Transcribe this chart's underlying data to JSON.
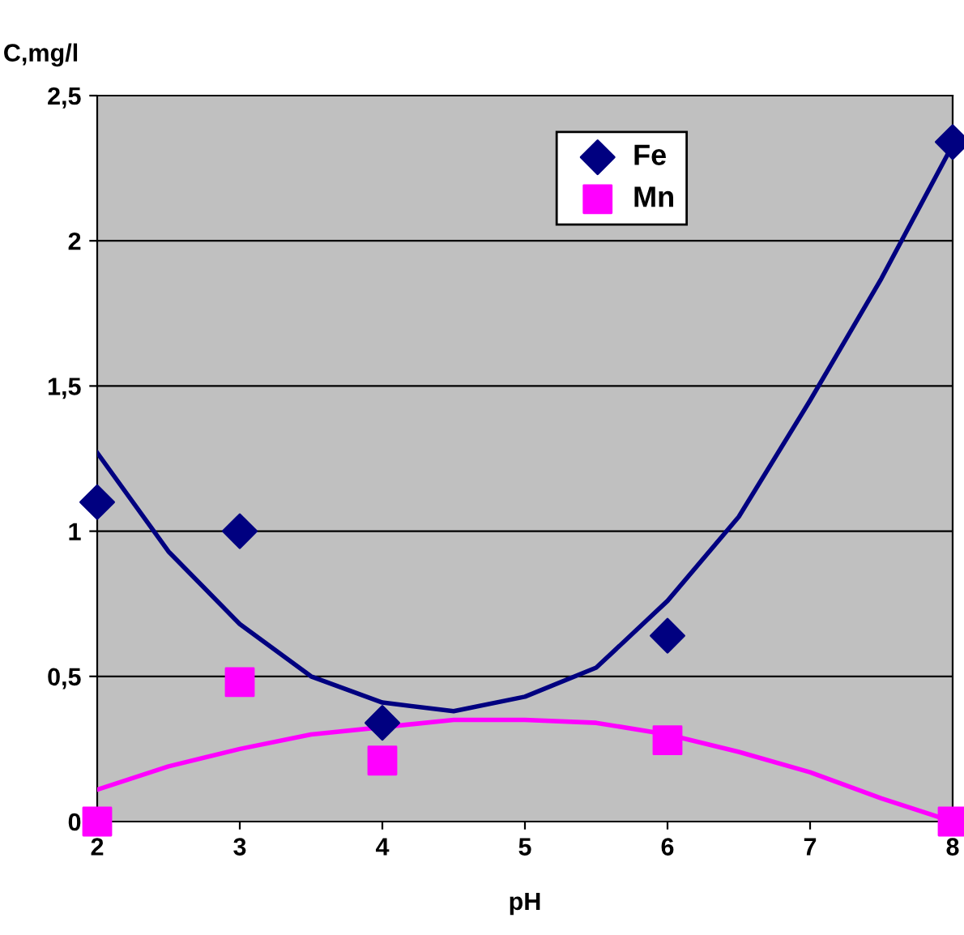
{
  "chart_data": {
    "type": "scatter",
    "xlabel": "pH",
    "ylabel": "C,mg/l",
    "xlim": [
      2,
      8
    ],
    "xticks": [
      2,
      3,
      4,
      5,
      6,
      7,
      8
    ],
    "ylim": [
      0,
      2.5
    ],
    "yticks": [
      0,
      {
        "value": 0.5,
        "label": "0,5"
      },
      1,
      {
        "value": 1.5,
        "label": "1,5"
      },
      2,
      {
        "value": 2.5,
        "label": "2,5"
      }
    ],
    "grid": "y",
    "legend": "top",
    "series": [
      {
        "name": "Fe",
        "marker": "diamond",
        "color": "#000080",
        "x": [
          2,
          3,
          4,
          6,
          8
        ],
        "values": [
          1.1,
          1.0,
          0.34,
          0.64,
          2.34
        ]
      },
      {
        "name": "Mn",
        "marker": "square",
        "color": "#ff00ff",
        "x": [
          2,
          3,
          4,
          6,
          8
        ],
        "values": [
          0.0,
          0.48,
          0.21,
          0.28,
          0.0
        ]
      },
      {
        "type": "line",
        "color": "#000080",
        "x": [
          2,
          2.5,
          3,
          3.5,
          4,
          4.5,
          5,
          5.5,
          6,
          6.5,
          7,
          7.5,
          8
        ],
        "values": [
          1.27,
          0.93,
          0.68,
          0.5,
          0.41,
          0.38,
          0.43,
          0.53,
          0.76,
          1.05,
          1.45,
          1.87,
          2.33
        ]
      },
      {
        "type": "line",
        "color": "#ff00ff",
        "x": [
          2,
          2.5,
          3,
          3.5,
          4.5,
          5,
          5.5,
          6,
          6.5,
          7,
          7.5,
          8
        ],
        "values": [
          0.11,
          0.19,
          0.25,
          0.3,
          0.35,
          0.35,
          0.34,
          0.3,
          0.24,
          0.17,
          0.08,
          0.0
        ]
      }
    ]
  }
}
